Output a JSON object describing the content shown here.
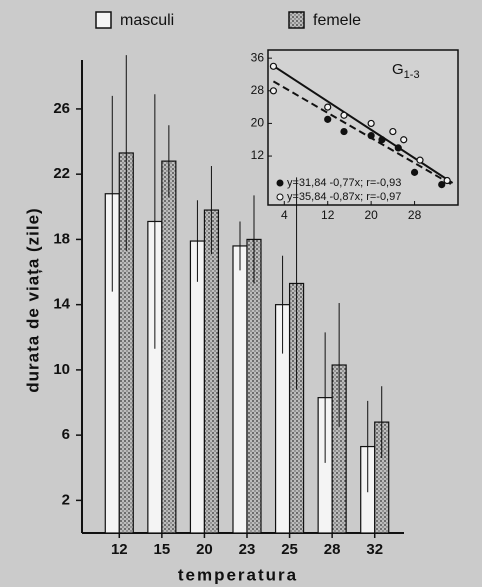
{
  "chart_data": [
    {
      "type": "bar",
      "x_label": "temperatura",
      "y_label": "durata de viața (zile)",
      "categories": [
        "12",
        "15",
        "20",
        "23",
        "25",
        "28",
        "32"
      ],
      "series": [
        {
          "name": "masculi",
          "color": "#f4f4f4",
          "pattern": false,
          "values": [
            20.8,
            19.1,
            17.9,
            17.6,
            14.0,
            8.3,
            5.3
          ],
          "errors": [
            6.0,
            7.8,
            2.5,
            1.5,
            3.0,
            4.0,
            2.8
          ]
        },
        {
          "name": "femele",
          "color": "#a9a9a9",
          "pattern": true,
          "values": [
            23.3,
            22.8,
            19.8,
            18.0,
            15.3,
            10.3,
            6.8
          ],
          "errors": [
            6.0,
            2.2,
            2.7,
            2.7,
            6.5,
            3.8,
            2.2
          ]
        }
      ],
      "ylim": [
        0,
        29
      ],
      "yticks": [
        2,
        6,
        10,
        14,
        18,
        22,
        26
      ],
      "grid": false
    },
    {
      "type": "scatter",
      "panel_label": "G",
      "panel_label_sub": "1-3",
      "series": [
        {
          "name": "y=31,84 -0,77x; r=-0,93",
          "marker": "filled",
          "line": "dashed",
          "fit": {
            "intercept": 31.84,
            "slope": -0.77
          },
          "x": [
            12,
            15,
            20,
            22,
            25,
            28,
            33
          ],
          "values": [
            21,
            18,
            17,
            16,
            14,
            8,
            5
          ]
        },
        {
          "name": "y=35,84 -0,87x; r=-0,97",
          "marker": "open",
          "line": "solid",
          "fit": {
            "intercept": 35.84,
            "slope": -0.87
          },
          "x": [
            2,
            2,
            12,
            15,
            20,
            24,
            26,
            29,
            34
          ],
          "values": [
            34,
            28,
            24,
            22,
            20,
            18,
            16,
            11,
            6
          ]
        }
      ],
      "xlim": [
        1,
        36
      ],
      "ylim": [
        0,
        38
      ],
      "xticks": [
        4,
        12,
        20,
        28
      ],
      "yticks": [
        12,
        20,
        28,
        36
      ],
      "grid": false
    }
  ]
}
